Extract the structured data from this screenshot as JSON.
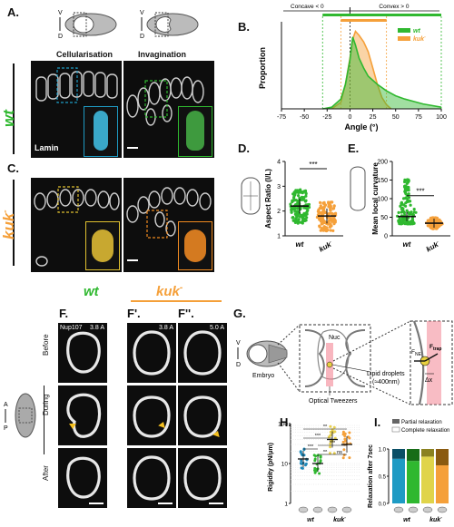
{
  "panels": {
    "A": {
      "label": "A.",
      "col1": "Cellularisation",
      "col2": "Invagination",
      "row": "wt",
      "stain": "Lamin"
    },
    "B": {
      "label": "B."
    },
    "C": {
      "label": "C.",
      "row": "kuk",
      "row_sup": "-"
    },
    "D": {
      "label": "D.",
      "ylabel": "Aspect Ratio (l/L)",
      "sig": "***"
    },
    "E": {
      "label": "E.",
      "ylabel": "Mean local curvature",
      "sig": "***"
    },
    "F": {
      "label1": "F.",
      "label2": "F'.",
      "label3": "F''.",
      "title_wt": "wt",
      "title_kuk": "kuk",
      "title_sup": "-",
      "marker": "Nup107",
      "amp1": "3.8 A",
      "amp2": "3.8 A",
      "amp3": "5.0 A",
      "rows": [
        "Before",
        "During",
        "After"
      ],
      "axis_a": "A",
      "axis_p": "P"
    },
    "G": {
      "label": "G.",
      "embryo": "Embryo",
      "nuc": "Nuc",
      "tweezers": "Optical Tweezers",
      "droplets": "Lipid droplets",
      "droplets_size": "(≈400nm)",
      "fne": "F",
      "fne_sub": "NE",
      "ftrap": "F",
      "ftrap_sub": "trap",
      "dx": "Δx",
      "axis_v": "V",
      "axis_d": "D"
    },
    "H": {
      "label": "H.",
      "ylabel": "Rigidity (pN/µm)",
      "sig": [
        "**",
        "***",
        "***",
        "**",
        "***",
        "***",
        "ns"
      ],
      "ticks": [
        "100",
        "10",
        "1"
      ]
    },
    "I": {
      "label": "I.",
      "ylabel": "Relaxation after 7sec",
      "legend": [
        "Partial relaxation",
        "Complete relaxation"
      ],
      "ticks": [
        "0.0",
        "0.5",
        "1.0"
      ]
    },
    "axis_v": "V",
    "axis_d": "D",
    "wt": "wt",
    "kuk": "kuk",
    "kuk_sup": "-"
  },
  "chart_data": [
    {
      "type": "line",
      "panel": "B",
      "xlabel": "Angle (°)",
      "ylabel": "Proportion",
      "xlim": [
        -75,
        100
      ],
      "xticks": [
        -75,
        -50,
        -25,
        0,
        25,
        50,
        75,
        100
      ],
      "annotations": {
        "left": "Concave < 0",
        "right": "Convex > 0"
      },
      "legend_placement": "top-right",
      "series": [
        {
          "name": "wt",
          "color": "#2fb82f",
          "x": [
            -30,
            -20,
            -10,
            -5,
            0,
            3,
            6,
            10,
            15,
            20,
            30,
            40,
            50,
            60,
            70,
            80,
            90,
            100
          ],
          "y": [
            0.0,
            0.02,
            0.12,
            0.3,
            0.6,
            0.88,
            0.78,
            0.62,
            0.5,
            0.4,
            0.3,
            0.22,
            0.16,
            0.12,
            0.09,
            0.06,
            0.04,
            0.02
          ]
        },
        {
          "name": "kuk",
          "name_sup": "-",
          "color": "#f5a03a",
          "x": [
            -20,
            -10,
            -5,
            0,
            3,
            6,
            10,
            15,
            20,
            25,
            30,
            35,
            40,
            45
          ],
          "y": [
            0.0,
            0.08,
            0.3,
            0.62,
            0.85,
            0.95,
            0.9,
            0.82,
            0.7,
            0.5,
            0.3,
            0.14,
            0.05,
            0.0
          ]
        }
      ]
    },
    {
      "type": "scatter",
      "panel": "D",
      "ylabel": "Aspect Ratio (l/L)",
      "ylim": [
        1,
        4
      ],
      "yticks": [
        1,
        2,
        3,
        4
      ],
      "categories": [
        "wt",
        "kuk"
      ],
      "series": [
        {
          "name": "wt",
          "color": "#2fb82f",
          "mean": 2.2
        },
        {
          "name": "kuk",
          "color": "#f5a03a",
          "mean": 1.8
        }
      ]
    },
    {
      "type": "scatter",
      "panel": "E",
      "ylabel": "Mean local curvature",
      "ylim": [
        0,
        200
      ],
      "yticks": [
        0,
        50,
        100,
        150,
        200
      ],
      "categories": [
        "wt",
        "kuk"
      ],
      "series": [
        {
          "name": "wt",
          "color": "#2fb82f",
          "mean": 52
        },
        {
          "name": "kuk",
          "color": "#f5a03a",
          "mean": 34
        }
      ]
    },
    {
      "type": "scatter",
      "panel": "H",
      "ylabel": "Rigidity (pN/µm)",
      "yscale": "log",
      "ylim": [
        1,
        100
      ],
      "groups": [
        {
          "name": "wt-1",
          "color": "#1e88b8",
          "median": 13
        },
        {
          "name": "wt-2",
          "color": "#2fb82f",
          "median": 10
        },
        {
          "name": "kuk-1",
          "color": "#e8d050",
          "median": 40
        },
        {
          "name": "kuk-2",
          "color": "#f5a03a",
          "median": 30
        }
      ]
    },
    {
      "type": "bar",
      "panel": "I",
      "ylabel": "Relaxation after 7sec",
      "ylim": [
        0,
        1
      ],
      "categories": [
        "wt-1",
        "wt-2",
        "kuk-1",
        "kuk-2"
      ],
      "series": [
        {
          "name": "Complete relaxation",
          "values": [
            0.82,
            0.78,
            0.86,
            0.7
          ]
        },
        {
          "name": "Partial relaxation",
          "values": [
            0.18,
            0.22,
            0.14,
            0.3
          ]
        }
      ],
      "colors_complete": [
        "#1e9bc4",
        "#2fb82f",
        "#e0d44a",
        "#f5a03a"
      ],
      "colors_partial": [
        "#0b4f66",
        "#186d18",
        "#8a8120",
        "#8a5a10"
      ]
    }
  ]
}
